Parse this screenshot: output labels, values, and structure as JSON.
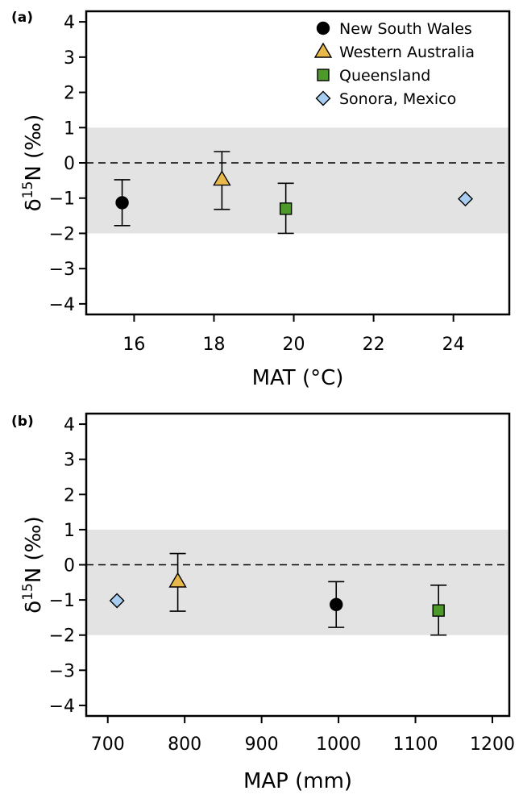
{
  "chart_data": [
    {
      "type": "scatter",
      "panel_label": "(a)",
      "xlabel": "MAT (°C)",
      "ylabel_base": "δ",
      "ylabel_sup": "15",
      "ylabel_rest": "N (‰)",
      "xlim": [
        14.8,
        25.4
      ],
      "ylim": [
        -4.3,
        4.3
      ],
      "xticks": [
        16,
        18,
        20,
        22,
        24
      ],
      "yticks": [
        4,
        3,
        2,
        1,
        0,
        -1,
        -2,
        -3,
        -4
      ],
      "ytick_labels": [
        "4",
        "3",
        "2",
        "1",
        "0",
        "−1",
        "−2",
        "−3",
        "−4"
      ],
      "shaded_band": [
        -2,
        1
      ],
      "reference_line": 0,
      "legend": "top-right",
      "series": [
        {
          "name": "New South Wales",
          "marker": "circle",
          "color": "#000000",
          "x": 15.7,
          "y": -1.13,
          "err_low": -1.78,
          "err_high": -0.48
        },
        {
          "name": "Western Australia",
          "marker": "triangle",
          "color": "#e8b84a",
          "x": 18.2,
          "y": -0.47,
          "err_low": -1.32,
          "err_high": 0.32
        },
        {
          "name": "Queensland",
          "marker": "square",
          "color": "#4d9a2a",
          "x": 19.8,
          "y": -1.3,
          "err_low": -2.0,
          "err_high": -0.58
        },
        {
          "name": "Sonora, Mexico",
          "marker": "diamond",
          "color": "#a9cdf0",
          "x": 24.3,
          "y": -1.02
        }
      ]
    },
    {
      "type": "scatter",
      "panel_label": "(b)",
      "xlabel": "MAP (mm)",
      "ylabel_base": "δ",
      "ylabel_sup": "15",
      "ylabel_rest": "N (‰)",
      "xlim": [
        672,
        1222
      ],
      "ylim": [
        -4.3,
        4.3
      ],
      "xticks": [
        700,
        800,
        900,
        1000,
        1100,
        1200
      ],
      "yticks": [
        4,
        3,
        2,
        1,
        0,
        -1,
        -2,
        -3,
        -4
      ],
      "ytick_labels": [
        "4",
        "3",
        "2",
        "1",
        "0",
        "−1",
        "−2",
        "−3",
        "−4"
      ],
      "shaded_band": [
        -2,
        1
      ],
      "reference_line": 0,
      "series": [
        {
          "name": "Sonora, Mexico",
          "marker": "diamond",
          "color": "#a9cdf0",
          "x": 712,
          "y": -1.02
        },
        {
          "name": "Western Australia",
          "marker": "triangle",
          "color": "#e8b84a",
          "x": 791,
          "y": -0.47,
          "err_low": -1.32,
          "err_high": 0.32
        },
        {
          "name": "New South Wales",
          "marker": "circle",
          "color": "#000000",
          "x": 997,
          "y": -1.13,
          "err_low": -1.78,
          "err_high": -0.48
        },
        {
          "name": "Queensland",
          "marker": "square",
          "color": "#4d9a2a",
          "x": 1130,
          "y": -1.3,
          "err_low": -2.0,
          "err_high": -0.58
        }
      ]
    }
  ],
  "colors": {
    "band": "#e3e3e3",
    "axis": "#000000",
    "newsouthwales": "#000000",
    "westernaustralia": "#e8b84a",
    "queensland": "#4d9a2a",
    "sonora": "#a9cdf0"
  }
}
